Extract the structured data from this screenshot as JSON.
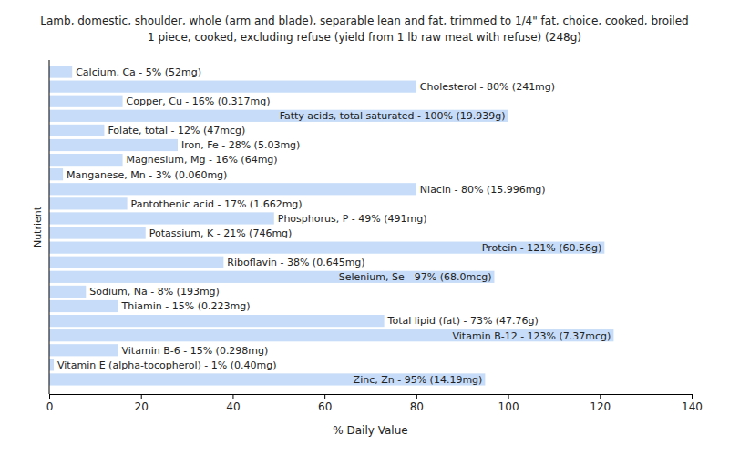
{
  "chart_data": {
    "type": "bar",
    "orientation": "horizontal",
    "title": [
      "Lamb, domestic, shoulder, whole (arm and blade), separable lean and fat, trimmed to 1/4\" fat, choice, cooked, broiled",
      "1 piece, cooked, excluding refuse (yield from 1 lb raw meat with refuse) (248g)"
    ],
    "x_label": "% Daily Value",
    "y_label": "Nutrient",
    "categories": [
      "Calcium, Ca - 5% (52mg)",
      "Cholesterol - 80% (241mg)",
      "Copper, Cu - 16% (0.317mg)",
      "Fatty acids, total saturated - 100% (19.939g)",
      "Folate, total - 12% (47mcg)",
      "Iron, Fe - 28% (5.03mg)",
      "Magnesium, Mg - 16% (64mg)",
      "Manganese, Mn - 3% (0.060mg)",
      "Niacin - 80% (15.996mg)",
      "Pantothenic acid - 17% (1.662mg)",
      "Phosphorus, P - 49% (491mg)",
      "Potassium, K - 21% (746mg)",
      "Protein - 121% (60.56g)",
      "Riboflavin - 38% (0.645mg)",
      "Selenium, Se - 97% (68.0mcg)",
      "Sodium, Na - 8% (193mg)",
      "Thiamin - 15% (0.223mg)",
      "Total lipid (fat) - 73% (47.76g)",
      "Vitamin B-12 - 123% (7.37mcg)",
      "Vitamin B-6 - 15% (0.298mg)",
      "Vitamin E (alpha-tocopherol) - 1% (0.40mg)",
      "Zinc, Zn - 95% (14.19mg)"
    ],
    "values": [
      5,
      80,
      16,
      100,
      12,
      28,
      16,
      3,
      80,
      17,
      49,
      21,
      121,
      38,
      97,
      8,
      15,
      73,
      123,
      15,
      1,
      95
    ],
    "color": "#c6dcf8",
    "xlim": [
      0,
      140
    ],
    "xticks": [
      0,
      20,
      40,
      60,
      80,
      100,
      120,
      140
    ],
    "tick_labels": "x"
  }
}
